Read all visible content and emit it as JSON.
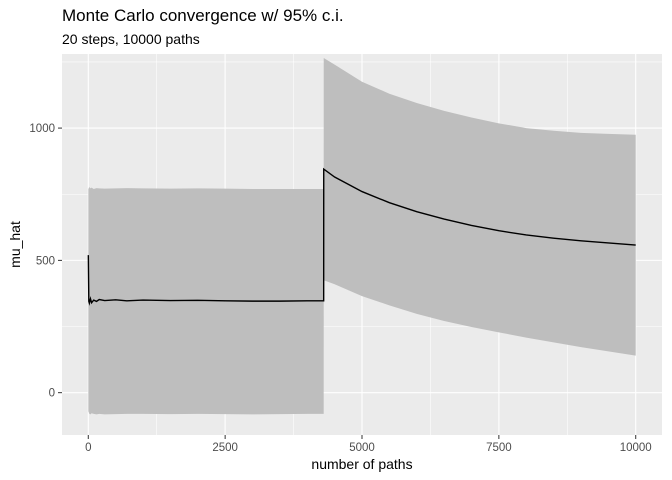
{
  "chart_data": {
    "type": "line",
    "title": "Monte Carlo convergence w/ 95% c.i.",
    "subtitle": "20 steps, 10000 paths",
    "xlabel": "number of paths",
    "ylabel": "mu_hat",
    "xlim": [
      -480,
      10480
    ],
    "ylim": [
      -160,
      1280
    ],
    "x_ticks": [
      0,
      2500,
      5000,
      7500,
      10000
    ],
    "x_tick_labels": [
      "0",
      "2500",
      "5000",
      "7500",
      "10000"
    ],
    "y_ticks": [
      0,
      500,
      1000
    ],
    "y_tick_labels": [
      "0",
      "500",
      "1000"
    ],
    "grid": true,
    "legend": "none",
    "colors": {
      "panel": "#ebebeb",
      "grid_major": "#ffffff",
      "ribbon": "#bebebe",
      "line": "#000000"
    },
    "series": [
      {
        "x": [
          1,
          10,
          20,
          40,
          60,
          100,
          150,
          200,
          300,
          500,
          700,
          1000,
          1500,
          2000,
          2500,
          3000,
          3500,
          4000,
          4300,
          4301,
          4500,
          5000,
          5500,
          6000,
          6500,
          7000,
          7500,
          8000,
          8500,
          9000,
          9500,
          10000
        ],
        "y": [
          520,
          345,
          338,
          355,
          340,
          350,
          345,
          352,
          348,
          351,
          347,
          350,
          348,
          349,
          347,
          346,
          346,
          347,
          347,
          845,
          815,
          760,
          718,
          684,
          656,
          632,
          612,
          596,
          584,
          574,
          566,
          558
        ],
        "lower": [
          -70,
          -75,
          -80,
          -82,
          -78,
          -80,
          -82,
          -80,
          -82,
          -81,
          -80,
          -80,
          -81,
          -80,
          -81,
          -82,
          -81,
          -80,
          -80,
          425,
          410,
          365,
          330,
          298,
          271,
          248,
          228,
          208,
          190,
          172,
          156,
          140
        ],
        "upper": [
          775,
          770,
          778,
          772,
          775,
          770,
          773,
          772,
          771,
          772,
          773,
          772,
          771,
          772,
          771,
          770,
          770,
          770,
          770,
          1265,
          1240,
          1175,
          1130,
          1095,
          1065,
          1040,
          1018,
          1000,
          990,
          982,
          978,
          975
        ]
      }
    ]
  }
}
